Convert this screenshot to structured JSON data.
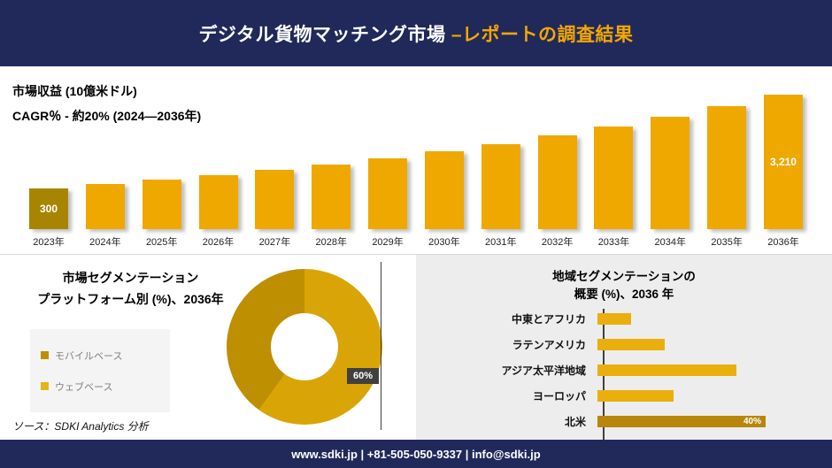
{
  "header": {
    "title_white": "デジタル貨物マッチング市場 ",
    "title_gold": "–レポートの調査結果"
  },
  "footer": {
    "text": "www.sdki.jp | +81-505-050-9337 | info@sdki.jp"
  },
  "source": {
    "text": "ソース：SDKI Analytics 分析"
  },
  "colors": {
    "navy": "#20295A",
    "gold": "#EFA800",
    "gold_dark": "#A88500",
    "donut_main": "#D9A506",
    "donut_secondary": "#BE8F00",
    "legend": [
      "#BF9000",
      "#E4B41A"
    ],
    "hbar": "#E9AF0C",
    "hbar_dark": "#B8860B",
    "badge_bg": "#404040"
  },
  "chart_data": [
    {
      "type": "bar",
      "title": "市場収益 (10億米ドル)",
      "subtitle": "CAGR％ - 約20% (2024―2036年)",
      "categories": [
        "2023年",
        "2024年",
        "2025年",
        "2026年",
        "2027年",
        "2028年",
        "2029年",
        "2030年",
        "2031年",
        "2032年",
        "2033年",
        "2034年",
        "2035年",
        "2036年"
      ],
      "values": [
        300,
        360,
        432,
        518,
        622,
        746,
        896,
        1075,
        1290,
        1548,
        1857,
        2229,
        2675,
        3210
      ],
      "value_labels": {
        "first": "300",
        "last": "3,210"
      },
      "ylabel": "10億米ドル",
      "grid": false,
      "legend_position": "none"
    },
    {
      "type": "pie",
      "title_line1": "市場セグメンテーション",
      "title_line2": "プラットフォーム別 (%)、2036年",
      "labels": [
        "モバイルベース",
        "ウェブベース"
      ],
      "values": [
        60,
        40
      ],
      "annotation": "60%",
      "legend_position": "left"
    },
    {
      "type": "bar",
      "orientation": "horizontal",
      "title_line1": "地域セグメンテーションの",
      "title_line2": "概要 (%)、2036 年",
      "categories": [
        "中東とアフリカ",
        "ラテンアメリカ",
        "アジア太平洋地域",
        "ヨーロッパ",
        "北米"
      ],
      "values": [
        8,
        16,
        33,
        18,
        40
      ],
      "value_labels": {
        "北米": "40%"
      },
      "grid": false,
      "legend_position": "none"
    }
  ]
}
